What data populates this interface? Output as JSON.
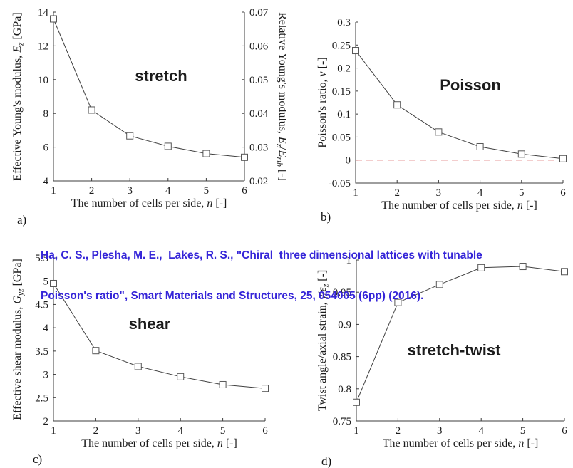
{
  "figure": {
    "background": "#ffffff",
    "annotation_color": "#3a2be0",
    "citation_color": "#3525d8",
    "axis_color": "#3c3c3c",
    "line_color": "#404040",
    "marker_edge_color": "#565656",
    "marker_fill": "#ffffff",
    "zero_line_color": "#e07b7b"
  },
  "citation": {
    "lines": [
      "Ha, C. S., Plesha, M. E.,  Lakes, R. S., \"Chiral  three dimensional lattices with tunable",
      "Poisson's ratio\", Smart Materials and Structures, 25, 054005 (6pp) (2016)."
    ]
  },
  "chart_data": [
    {
      "id": "a",
      "panel_label": "a)",
      "type": "line",
      "annotation": "stretch",
      "x": [
        1,
        2,
        3,
        4,
        5,
        6
      ],
      "values": [
        13.6,
        8.2,
        6.67,
        6.05,
        5.62,
        5.4
      ],
      "xlabel": "The number of cells per side, *n* [-]",
      "ylabel": "Effective Young's modulus, *E*_{z} [GPa]",
      "y2label": "Relative Young's modulus, *E*_{z}/*E*_{rib} [-]",
      "xlim": [
        1,
        6
      ],
      "ylim": [
        4,
        14
      ],
      "y2lim": [
        0.02,
        0.07
      ],
      "xticks": [
        "1",
        "2",
        "3",
        "4",
        "5",
        "6"
      ],
      "yticks": [
        "4",
        "6",
        "8",
        "10",
        "12",
        "14"
      ],
      "y2ticks": [
        "0.02",
        "0.03",
        "0.04",
        "0.05",
        "0.06",
        "0.07"
      ],
      "marker": "open-square",
      "grid": false,
      "legend": null
    },
    {
      "id": "b",
      "panel_label": "b)",
      "type": "line",
      "annotation": "Poisson",
      "x": [
        1,
        2,
        3,
        4,
        5,
        6
      ],
      "values": [
        0.238,
        0.12,
        0.061,
        0.029,
        0.013,
        0.003
      ],
      "xlabel": "The number of cells per side, *n* [-]",
      "ylabel": "Poisson's ratio, *ν* [-]",
      "xlim": [
        1,
        6
      ],
      "ylim": [
        -0.05,
        0.3
      ],
      "xticks": [
        "1",
        "2",
        "3",
        "4",
        "5",
        "6"
      ],
      "yticks": [
        "-0.05",
        "0",
        "0.05",
        "0.1",
        "0.15",
        "0.2",
        "0.25",
        "0.3"
      ],
      "zero_line": 0,
      "marker": "open-square",
      "grid": false,
      "legend": null
    },
    {
      "id": "c",
      "panel_label": "c)",
      "type": "line",
      "annotation": "shear",
      "x": [
        1,
        2,
        3,
        4,
        5,
        6
      ],
      "values": [
        4.95,
        3.51,
        3.17,
        2.95,
        2.78,
        2.7
      ],
      "xlabel": "The number of cells per side, *n* [-]",
      "ylabel": "Effective shear modulus, *G*_{yz} [GPa]",
      "xlim": [
        1,
        6
      ],
      "ylim": [
        2,
        5.5
      ],
      "xticks": [
        "1",
        "2",
        "3",
        "4",
        "5",
        "6"
      ],
      "yticks": [
        "2",
        "2.5",
        "3",
        "3.5",
        "4",
        "4.5",
        "5",
        "5.5"
      ],
      "marker": "open-square",
      "grid": false,
      "legend": null
    },
    {
      "id": "d",
      "panel_label": "d)",
      "type": "line",
      "annotation": "stretch-twist",
      "x": [
        1,
        2,
        3,
        4,
        5,
        6
      ],
      "values": [
        0.779,
        0.934,
        0.962,
        0.988,
        0.99,
        0.982
      ],
      "xlabel": "The number of cells per side, *n* [-]",
      "ylabel": "Twist angle/axial strain, *γ*/*ε*_{z} [-]",
      "xlim": [
        1,
        6
      ],
      "ylim": [
        0.75,
        1
      ],
      "xticks": [
        "1",
        "2",
        "3",
        "4",
        "5",
        "6"
      ],
      "yticks": [
        "0.75",
        "0.8",
        "0.85",
        "0.9",
        "0.95",
        "1"
      ],
      "marker": "open-square",
      "grid": false,
      "legend": null
    }
  ]
}
